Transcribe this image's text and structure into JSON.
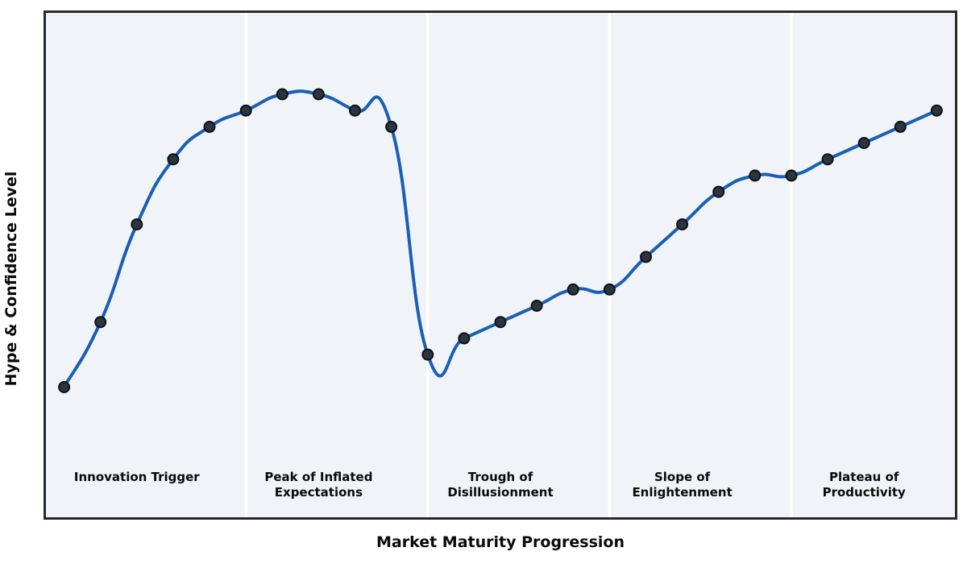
{
  "chart_data": {
    "type": "line",
    "title": "",
    "xlabel": "Market Maturity Progression",
    "ylabel": "Hype & Confidence Level",
    "x": [
      0,
      1,
      2,
      3,
      4,
      5,
      6,
      7,
      8,
      9,
      10,
      11,
      12,
      13,
      14,
      15,
      16,
      17,
      18,
      19,
      20,
      21,
      22,
      23,
      24
    ],
    "values": [
      5,
      25,
      55,
      75,
      85,
      90,
      95,
      95,
      90,
      85,
      15,
      20,
      25,
      30,
      35,
      35,
      45,
      55,
      65,
      70,
      70,
      75,
      80,
      85,
      90
    ],
    "xlim": [
      -0.5,
      24.5
    ],
    "ylim": [
      -35,
      120
    ],
    "grid": false,
    "legend": "none",
    "curve": "smooth cubic spline through markers with overshoot",
    "phase_boundaries_x": [
      5,
      10,
      15,
      20
    ],
    "phase_label_y": -20,
    "phases": [
      {
        "label": "Innovation Trigger",
        "label_x": 2
      },
      {
        "label": "Peak of Inflated\nExpectations",
        "label_x": 7
      },
      {
        "label": "Trough of\nDisillusionment",
        "label_x": 12
      },
      {
        "label": "Slope of\nEnlightenment",
        "label_x": 17
      },
      {
        "label": "Plateau of\nProductivity",
        "label_x": 22
      }
    ],
    "colors": {
      "line": "#1a5fb4",
      "marker_fill": "#2b3440",
      "marker_edge": "#0e1116",
      "plot_bg": "#f0f4f8",
      "phase_separator": "#ffffff",
      "border": "#26292e",
      "text": "#0a0a0a",
      "figure_bg": "#ffffff"
    }
  }
}
